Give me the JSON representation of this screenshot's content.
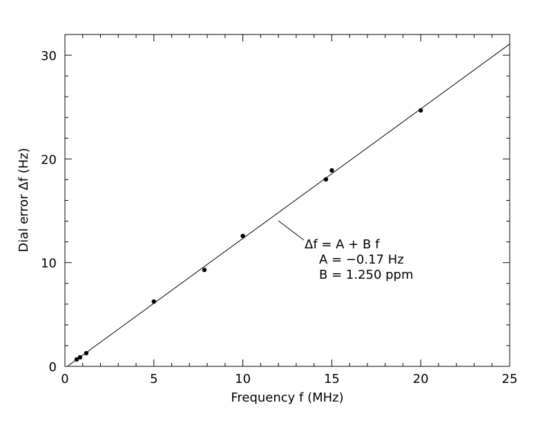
{
  "chart_data": {
    "type": "scatter",
    "xlabel": "Frequency f (MHz)",
    "ylabel": "Dial error Δf (Hz)",
    "xlim": [
      0,
      25
    ],
    "ylim": [
      0,
      32
    ],
    "xticks": [
      0,
      5,
      10,
      15,
      20,
      25
    ],
    "yticks": [
      0,
      10,
      20,
      30
    ],
    "x_minor_step": 1,
    "y_minor_step": 2,
    "grid": false,
    "points": [
      {
        "x": 0.66,
        "y": 0.67
      },
      {
        "x": 0.85,
        "y": 0.87
      },
      {
        "x": 1.2,
        "y": 1.27
      },
      {
        "x": 5.0,
        "y": 6.25
      },
      {
        "x": 7.84,
        "y": 9.3
      },
      {
        "x": 10.0,
        "y": 12.57
      },
      {
        "x": 14.67,
        "y": 18.03
      },
      {
        "x": 15.0,
        "y": 18.9
      },
      {
        "x": 20.0,
        "y": 24.68
      }
    ],
    "fit": {
      "A": -0.17,
      "B": 1.25
    },
    "annotation": {
      "line1": "Δf = A + B f",
      "line2": "A = −0.17 Hz",
      "line3": "B = 1.250 ppm",
      "points_to_x": 12
    }
  }
}
